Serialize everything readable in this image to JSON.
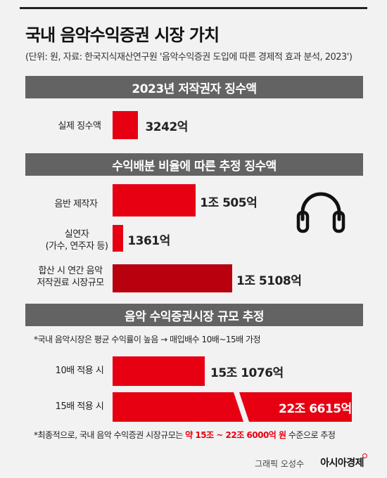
{
  "title": "국내 음악수익증권 시장 가치",
  "source": "(단위: 원, 자료: 한국지식재산연구원 '음악수익증권 도입에 따른 경제적 효과 분석, 2023')",
  "sections": {
    "s1": "2023년 저작권자 징수액",
    "s2": "수익배분 비율에 따른 추정 징수액",
    "s3": "음악 수익증권시장 규모 추정"
  },
  "notes": {
    "market_note": "*국내 음악시장은 평균 수익률이 높음 → 매입배수 10배~15배 가정",
    "final_prefix": "*최종적으로, 국내 음악 수익증권 시장규모는",
    "final_highlight": "약 15조 ~ 22조 6000억 원",
    "final_suffix": "수준으로 추정"
  },
  "credit": {
    "graphic": "그래픽 오성수",
    "brand": "아시아경제"
  },
  "colors": {
    "accent": "#e60012",
    "accent_dark": "#b8000e",
    "band": "#636363",
    "background": "#f2f2f2"
  },
  "icon": "headphones-icon",
  "chart_data": [
    {
      "type": "bar",
      "orientation": "horizontal",
      "title": "2023년 저작권자 징수액",
      "categories": [
        "실제 징수액"
      ],
      "values": [
        3242
      ],
      "value_labels": [
        "3242억"
      ],
      "unit": "억 원"
    },
    {
      "type": "bar",
      "orientation": "horizontal",
      "title": "수익배분 비율에 따른 추정 징수액",
      "categories": [
        "음반 제작자",
        "실연자\n(가수, 연주자 등)",
        "합산 시 연간 음악\n저작권료 시장규모"
      ],
      "values": [
        10505,
        1361,
        15108
      ],
      "value_labels": [
        "1조 505억",
        "1361억",
        "1조 5108억"
      ],
      "unit": "억 원"
    },
    {
      "type": "bar",
      "orientation": "horizontal",
      "title": "음악 수익증권시장 규모 추정",
      "categories": [
        "10배 적용 시",
        "15배 적용 시"
      ],
      "values": [
        151076,
        226615
      ],
      "value_labels": [
        "15조 1076억",
        "22조 6615억"
      ],
      "unit": "억 원",
      "axis_break": true
    }
  ]
}
